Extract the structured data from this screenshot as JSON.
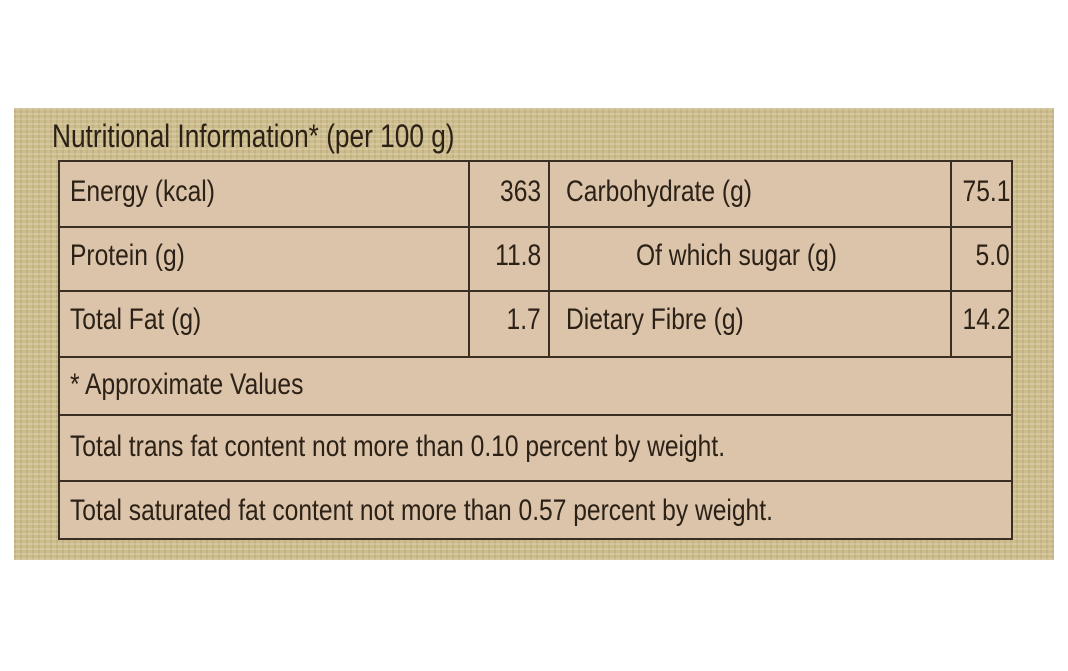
{
  "header": {
    "title": "Nutritional Information* (per 100 g)"
  },
  "table": {
    "rows": [
      [
        "Energy (kcal)",
        "363",
        "Carbohydrate (g)",
        "75.1"
      ],
      [
        "Protein (g)",
        "11.8",
        "Of which sugar (g)",
        "5.0"
      ],
      [
        "Total Fat (g)",
        "1.7",
        "Dietary Fibre (g)",
        "14.2"
      ]
    ]
  },
  "notes": [
    "* Approximate Values",
    "Total trans fat content not more than 0.10 percent by weight.",
    "Total saturated fat content not more than 0.57 percent by weight."
  ]
}
